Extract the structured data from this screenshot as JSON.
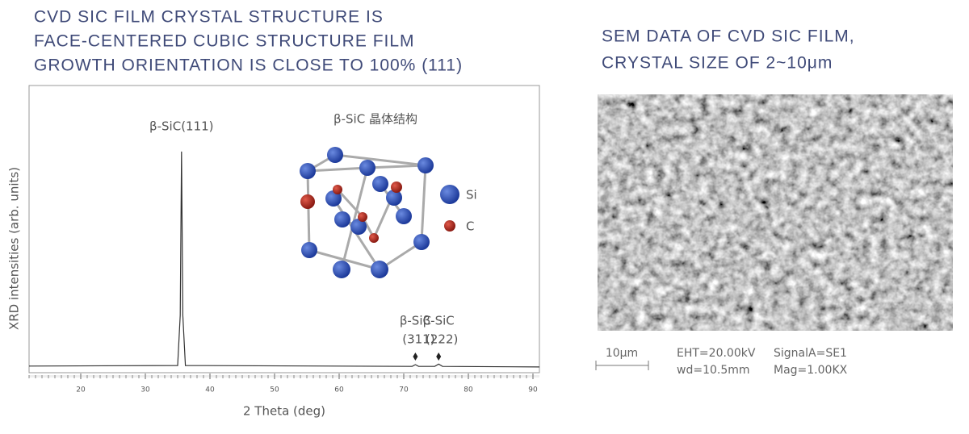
{
  "left_title": [
    "CVD SIC FILM CRYSTAL STRUCTURE IS",
    "FACE-CENTERED CUBIC STRUCTURE FILM",
    "GROWTH ORIENTATION IS CLOSE TO 100% (111)"
  ],
  "chart_data": {
    "type": "line",
    "x_label": "2 Theta (deg)",
    "y_label": "XRD intensities (arb. units)",
    "xlim": [
      12,
      91
    ],
    "xticks": [
      20,
      30,
      40,
      50,
      60,
      70,
      80,
      90
    ],
    "ylim": [
      0,
      100
    ],
    "series": [
      {
        "color": "#333333",
        "x": [
          12,
          35.0,
          35.4,
          35.6,
          35.8,
          36.2,
          71.3,
          71.8,
          72.3,
          74.8,
          75.4,
          76.0,
          91
        ],
        "values": [
          2.3,
          2.5,
          20,
          77,
          20,
          2.5,
          2.2,
          2.8,
          2.2,
          2.2,
          3,
          2.2,
          2.0
        ]
      }
    ],
    "annotations": [
      {
        "text": "β-SiC(111)",
        "x": 35.6
      },
      {
        "text": "β-SiC",
        "sub": "(311)",
        "x": 71.8
      },
      {
        "text": "β-SiC",
        "sub": "(222)",
        "x": 75.4
      }
    ],
    "inset": {
      "title": "β-SiC 晶体结构",
      "legend": [
        "Si",
        "C"
      ]
    }
  },
  "right_title": [
    "SEM DATA OF CVD SIC FILM,",
    "CRYSTAL SIZE OF 2~10μm"
  ],
  "sem": {
    "scale_bar": "10μm",
    "info": [
      "EHT=20.00kV",
      "SignalA=SE1",
      "wd=10.5mm",
      "Mag=1.00KX"
    ]
  }
}
